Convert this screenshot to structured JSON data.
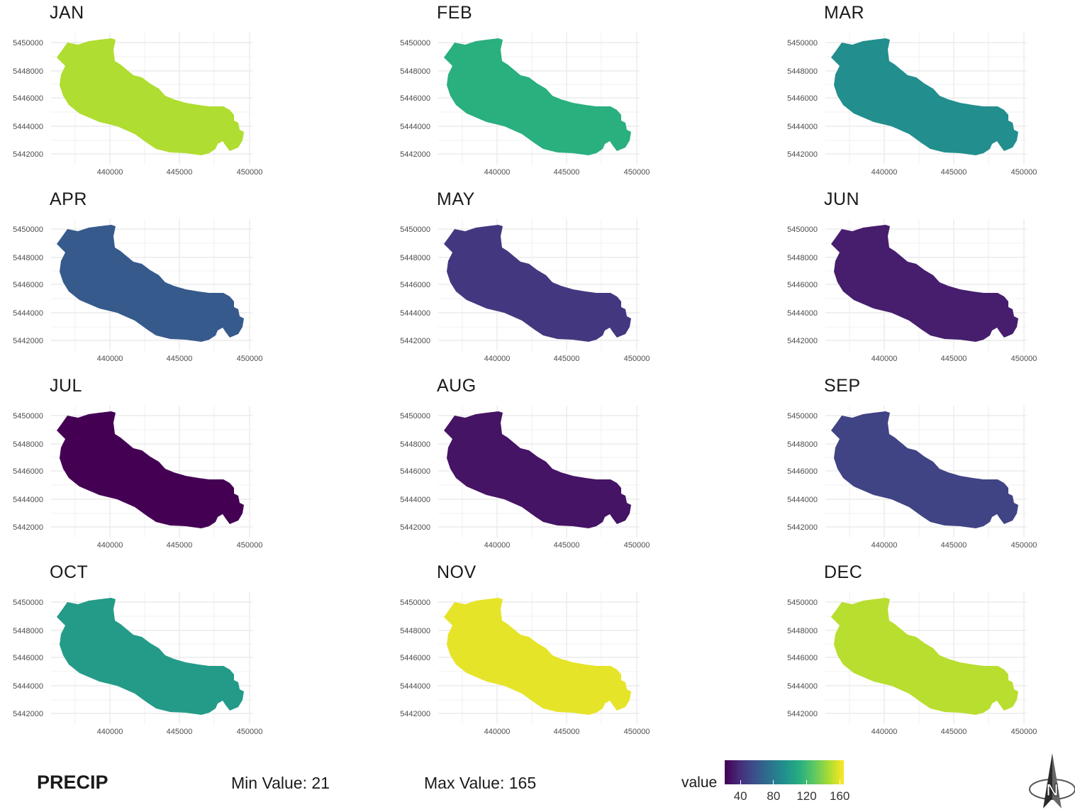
{
  "map_data": {
    "x_ticks": [
      "440000",
      "445000",
      "450000"
    ],
    "y_ticks": [
      "5450000",
      "5448000",
      "5446000",
      "5444000",
      "5442000"
    ],
    "panels": [
      {
        "month": "JAN",
        "value": 148
      },
      {
        "month": "FEB",
        "value": 112
      },
      {
        "month": "MAR",
        "value": 92
      },
      {
        "month": "APR",
        "value": 62
      },
      {
        "month": "MAY",
        "value": 45
      },
      {
        "month": "JUN",
        "value": 33
      },
      {
        "month": "JUL",
        "value": 21
      },
      {
        "month": "AUG",
        "value": 29
      },
      {
        "month": "SEP",
        "value": 50
      },
      {
        "month": "OCT",
        "value": 100
      },
      {
        "month": "NOV",
        "value": 160
      },
      {
        "month": "DEC",
        "value": 150
      }
    ]
  },
  "footer": {
    "variable": "PRECIP",
    "min_text": "Min Value: 21",
    "max_text": "Max Value: 165"
  },
  "legend": {
    "title": "value",
    "min": 21,
    "max": 165,
    "ticks": [
      "40",
      "80",
      "120",
      "160"
    ],
    "colors": [
      "#440154",
      "#472c7a",
      "#3b518b",
      "#2c718e",
      "#21908d",
      "#27ad81",
      "#5cc863",
      "#aadc32",
      "#fde725"
    ]
  },
  "north_arrow": {
    "label": "N"
  }
}
